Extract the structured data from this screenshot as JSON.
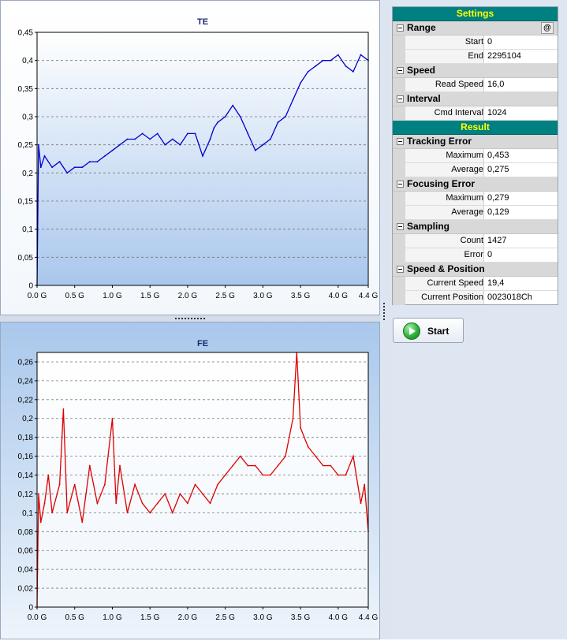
{
  "charts": {
    "te": {
      "title": "TE",
      "ticks": [
        "0",
        "0,05",
        "0,1",
        "0,15",
        "0,2",
        "0,25",
        "0,3",
        "0,35",
        "0,4",
        "0,45"
      ],
      "xticks": [
        "0.0 G",
        "0.5 G",
        "1.0 G",
        "1.5 G",
        "2.0 G",
        "2.5 G",
        "3.0 G",
        "3.5 G",
        "4.0 G",
        "4.4 G"
      ]
    },
    "fe": {
      "title": "FE",
      "ticks": [
        "0",
        "0,02",
        "0,04",
        "0,06",
        "0,08",
        "0,1",
        "0,12",
        "0,14",
        "0,16",
        "0,18",
        "0,2",
        "0,22",
        "0,24",
        "0,26"
      ],
      "xticks": [
        "0.0 G",
        "0.5 G",
        "1.0 G",
        "1.5 G",
        "2.0 G",
        "2.5 G",
        "3.0 G",
        "3.5 G",
        "4.0 G",
        "4.4 G"
      ]
    }
  },
  "chart_data": [
    {
      "type": "line",
      "title": "TE",
      "color": "#0000cc",
      "xlim": [
        0,
        4.4
      ],
      "ylim": [
        0,
        0.45
      ],
      "grid": true,
      "x": [
        0.0,
        0.02,
        0.05,
        0.1,
        0.2,
        0.3,
        0.4,
        0.5,
        0.6,
        0.7,
        0.8,
        0.9,
        1.0,
        1.1,
        1.2,
        1.3,
        1.4,
        1.5,
        1.6,
        1.7,
        1.8,
        1.9,
        2.0,
        2.1,
        2.2,
        2.3,
        2.35,
        2.4,
        2.5,
        2.6,
        2.7,
        2.8,
        2.9,
        3.0,
        3.1,
        3.2,
        3.3,
        3.4,
        3.5,
        3.6,
        3.7,
        3.8,
        3.9,
        4.0,
        4.1,
        4.2,
        4.3,
        4.4
      ],
      "values": [
        0.0,
        0.25,
        0.21,
        0.23,
        0.21,
        0.22,
        0.2,
        0.21,
        0.21,
        0.22,
        0.22,
        0.23,
        0.24,
        0.25,
        0.26,
        0.26,
        0.27,
        0.26,
        0.27,
        0.25,
        0.26,
        0.25,
        0.27,
        0.27,
        0.23,
        0.26,
        0.28,
        0.29,
        0.3,
        0.32,
        0.3,
        0.27,
        0.24,
        0.25,
        0.26,
        0.29,
        0.3,
        0.33,
        0.36,
        0.38,
        0.39,
        0.4,
        0.4,
        0.41,
        0.39,
        0.38,
        0.41,
        0.4
      ]
    },
    {
      "type": "line",
      "title": "FE",
      "color": "#dd0000",
      "xlim": [
        0,
        4.4
      ],
      "ylim": [
        0,
        0.27
      ],
      "grid": true,
      "x": [
        0.0,
        0.02,
        0.05,
        0.1,
        0.15,
        0.2,
        0.3,
        0.35,
        0.4,
        0.5,
        0.6,
        0.7,
        0.8,
        0.9,
        1.0,
        1.05,
        1.1,
        1.2,
        1.3,
        1.4,
        1.5,
        1.6,
        1.7,
        1.8,
        1.9,
        2.0,
        2.1,
        2.2,
        2.3,
        2.4,
        2.5,
        2.6,
        2.7,
        2.8,
        2.9,
        3.0,
        3.1,
        3.2,
        3.3,
        3.4,
        3.45,
        3.5,
        3.6,
        3.7,
        3.8,
        3.9,
        4.0,
        4.1,
        4.2,
        4.3,
        4.35,
        4.4
      ],
      "values": [
        0.0,
        0.12,
        0.09,
        0.11,
        0.14,
        0.1,
        0.13,
        0.21,
        0.1,
        0.13,
        0.09,
        0.15,
        0.11,
        0.13,
        0.2,
        0.11,
        0.15,
        0.1,
        0.13,
        0.11,
        0.1,
        0.11,
        0.12,
        0.1,
        0.12,
        0.11,
        0.13,
        0.12,
        0.11,
        0.13,
        0.14,
        0.15,
        0.16,
        0.15,
        0.15,
        0.14,
        0.14,
        0.15,
        0.16,
        0.2,
        0.27,
        0.19,
        0.17,
        0.16,
        0.15,
        0.15,
        0.14,
        0.14,
        0.16,
        0.11,
        0.13,
        0.08
      ]
    }
  ],
  "settings": {
    "header": "Settings",
    "range": {
      "label": "Range",
      "at": "@",
      "start_label": "Start",
      "start": "0",
      "end_label": "End",
      "end": "2295104"
    },
    "speed": {
      "label": "Speed",
      "read_label": "Read Speed",
      "read": "16,0"
    },
    "interval": {
      "label": "Interval",
      "cmd_label": "Cmd Interval",
      "cmd": "1024"
    }
  },
  "result": {
    "header": "Result",
    "tracking": {
      "label": "Tracking Error",
      "max_label": "Maximum",
      "max": "0,453",
      "avg_label": "Average",
      "avg": "0,275"
    },
    "focusing": {
      "label": "Focusing Error",
      "max_label": "Maximum",
      "max": "0,279",
      "avg_label": "Average",
      "avg": "0,129"
    },
    "sampling": {
      "label": "Sampling",
      "count_label": "Count",
      "count": "1427",
      "error_label": "Error",
      "error": "0"
    },
    "speedpos": {
      "label": "Speed & Position",
      "cur_speed_label": "Current Speed",
      "cur_speed": "19,4",
      "cur_pos_label": "Current Position",
      "cur_pos": "0023018Ch"
    }
  },
  "buttons": {
    "start": "Start"
  }
}
